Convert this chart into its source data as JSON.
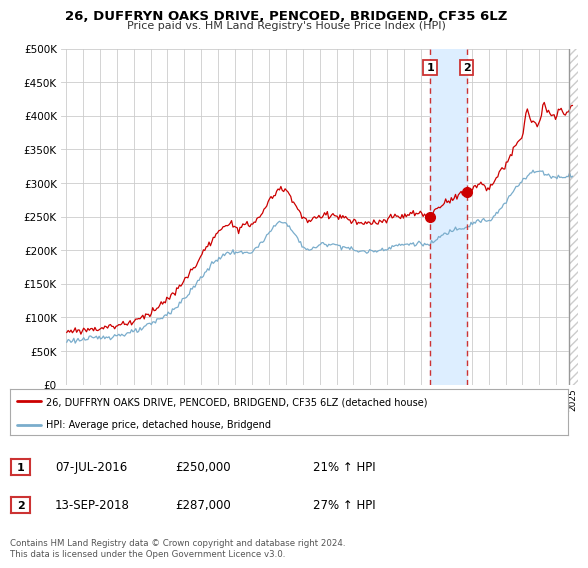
{
  "title": "26, DUFFRYN OAKS DRIVE, PENCOED, BRIDGEND, CF35 6LZ",
  "subtitle": "Price paid vs. HM Land Registry's House Price Index (HPI)",
  "legend_line1": "26, DUFFRYN OAKS DRIVE, PENCOED, BRIDGEND, CF35 6LZ (detached house)",
  "legend_line2": "HPI: Average price, detached house, Bridgend",
  "annotation1_date": "07-JUL-2016",
  "annotation1_price": "£250,000",
  "annotation1_hpi": "21% ↑ HPI",
  "annotation2_date": "13-SEP-2018",
  "annotation2_price": "£287,000",
  "annotation2_hpi": "27% ↑ HPI",
  "footer": "Contains HM Land Registry data © Crown copyright and database right 2024.\nThis data is licensed under the Open Government Licence v3.0.",
  "sale1_x": 2016.54,
  "sale1_y": 250000,
  "sale2_x": 2018.71,
  "sale2_y": 287000,
  "vline1_x": 2016.54,
  "vline2_x": 2018.71,
  "red_color": "#cc0000",
  "blue_color": "#7aadcc",
  "shade_color": "#ddeeff",
  "vline_color": "#cc3333",
  "ylim": [
    0,
    500000
  ],
  "yticks": [
    0,
    50000,
    100000,
    150000,
    200000,
    250000,
    300000,
    350000,
    400000,
    450000,
    500000
  ],
  "xlim_start": 1994.7,
  "xlim_end": 2025.3,
  "background_color": "#ffffff",
  "grid_color": "#cccccc",
  "hatch_start": 2024.75
}
